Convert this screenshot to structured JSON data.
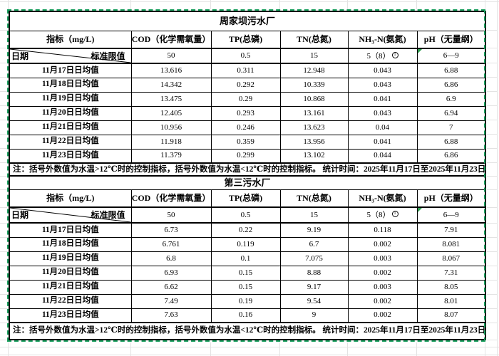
{
  "sheet": {
    "selection_border_color": "#1aa05f",
    "gridline_color": "#e3e3e3",
    "table_border_color": "#000000",
    "error_flag_color": "#2f9e4f"
  },
  "tables": [
    {
      "title": "周家坝污水厂",
      "corner": {
        "left": "日期",
        "right": "标准限值"
      },
      "headers": [
        "指标（mg/L)",
        "COD（化学需氧量）",
        "TP(总磷)",
        "TN(总氮)",
        "NH₃-N(氨氮)",
        "pH（无量纲）"
      ],
      "standard": [
        "50",
        "0.5",
        "15",
        {
          "text": "5（8）",
          "sup_circled": "1"
        },
        {
          "text": "6—9",
          "flag": true
        }
      ],
      "rows": [
        {
          "date": "11月17日日均值",
          "values": [
            "13.616",
            "0.311",
            "12.948",
            "0.043",
            "6.88"
          ]
        },
        {
          "date": "11月18日日均值",
          "values": [
            "14.342",
            "0.292",
            "10.339",
            "0.043",
            "6.86"
          ]
        },
        {
          "date": "11月19日日均值",
          "values": [
            "13.475",
            "0.29",
            "10.868",
            "0.041",
            "6.9"
          ]
        },
        {
          "date": "11月20日日均值",
          "values": [
            "12.405",
            "0.293",
            "13.161",
            "0.043",
            "6.94"
          ]
        },
        {
          "date": "11月21日日均值",
          "values": [
            "10.956",
            "0.246",
            "13.623",
            "0.04",
            "7"
          ]
        },
        {
          "date": "11月22日日均值",
          "values": [
            "11.918",
            "0.359",
            "13.956",
            "0.041",
            "6.88"
          ]
        },
        {
          "date": "11月23日日均值",
          "values": [
            "11.379",
            "0.299",
            "13.102",
            "0.044",
            "6.86"
          ]
        }
      ],
      "note": "注：括号外数值为水温>12℃时的控制指标，括号外数值为水温<12℃时的控制指标。 统计时间：2025年11月17日至2025年11月23日"
    },
    {
      "title": "第三污水厂",
      "corner": {
        "left": "日期",
        "right": "标准限值"
      },
      "headers": [
        "指标（mg/L)",
        "COD（化学需氧量）",
        "TP(总磷)",
        "TN(总氮)",
        "NH₃-N(氨氮)",
        "pH（无量纲）"
      ],
      "standard": [
        "50",
        "0.5",
        "15",
        {
          "text": "5（8）",
          "sup_circled": "1"
        },
        {
          "text": "6—9",
          "flag": true
        }
      ],
      "rows": [
        {
          "date": "11月17日日均值",
          "values": [
            "6.73",
            "0.22",
            "9.19",
            "0.118",
            "7.91"
          ]
        },
        {
          "date": "11月18日日均值",
          "values": [
            "6.761",
            "0.119",
            "6.7",
            "0.002",
            "8.081"
          ]
        },
        {
          "date": "11月19日日均值",
          "values": [
            "6.8",
            "0.1",
            "7.075",
            "0.003",
            "8.067"
          ]
        },
        {
          "date": "11月20日日均值",
          "values": [
            "6.93",
            "0.15",
            "8.88",
            "0.002",
            "7.31"
          ]
        },
        {
          "date": "11月21日日均值",
          "values": [
            "6.62",
            "0.15",
            "9.17",
            "0.003",
            "8.05"
          ]
        },
        {
          "date": "11月22日日均值",
          "values": [
            "7.49",
            "0.19",
            "9.54",
            "0.002",
            "8.01"
          ]
        },
        {
          "date": "11月23日日均值",
          "values": [
            "7.63",
            "0.16",
            "9",
            "0.002",
            "8.07"
          ]
        }
      ],
      "note": "注：括号外数值为水温>12℃时的控制指标，括号外数值为水温<12℃时的控制指标。 统计时间：2025年11月17日至2025年11月23日"
    }
  ]
}
